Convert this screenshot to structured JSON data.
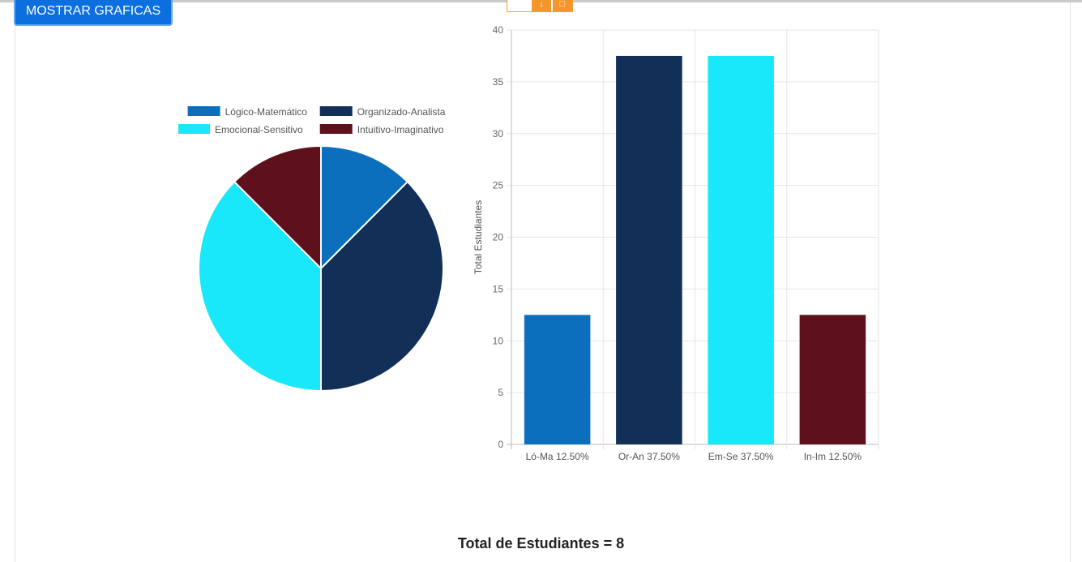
{
  "page": {
    "show_button_label": "MOSTRAR GRAFICAS",
    "total_line": "Total de Estudiantes = 8",
    "toolbar_icons": [
      "download-icon",
      "export-icon"
    ]
  },
  "chart_data": [
    {
      "type": "pie",
      "legend_position": "top",
      "categories": [
        "Lógico-Matemático",
        "Organizado-Analista",
        "Emocional-Sensitivo",
        "Intuitivo-Imaginativo"
      ],
      "values": [
        12.5,
        37.5,
        37.5,
        12.5
      ],
      "colors": [
        "#0b6fbd",
        "#112f57",
        "#19e8fa",
        "#5e111a"
      ]
    },
    {
      "type": "bar",
      "categories": [
        "Ló-Ma 12.50%",
        "Or-An 37.50%",
        "Em-Se 37.50%",
        "In-Im 12.50%"
      ],
      "values": [
        12.5,
        37.5,
        37.5,
        12.5
      ],
      "colors": [
        "#0b6fbd",
        "#112f57",
        "#19e8fa",
        "#5e111a"
      ],
      "ylabel": "Total Estudiantes",
      "ylim": [
        0,
        40
      ],
      "yticks": [
        0,
        5,
        10,
        15,
        20,
        25,
        30,
        35,
        40
      ],
      "grid": true
    }
  ]
}
